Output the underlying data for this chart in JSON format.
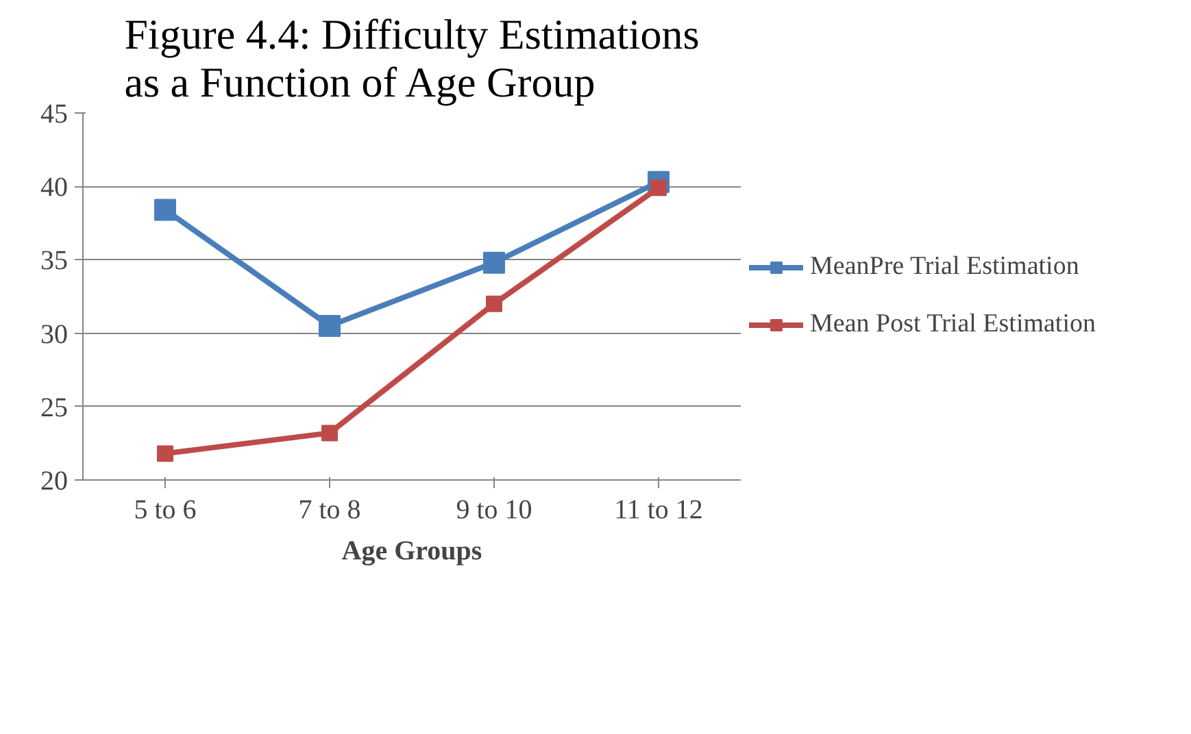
{
  "chart_data": {
    "type": "line",
    "title": "Figure 4.4: Difficulty Estimations as a Function of Age Group",
    "xlabel": "Age Groups",
    "categories": [
      "5 to 6",
      "7 to 8",
      "9 to 10",
      "11 to 12"
    ],
    "series": [
      {
        "name": "MeanPre Trial Estimation",
        "color": "#4a7ebb",
        "values": [
          38.4,
          30.5,
          34.8,
          40.3
        ]
      },
      {
        "name": "Mean Post Trial Estimation",
        "color": "#be4b48",
        "values": [
          21.8,
          23.2,
          32.0,
          39.9
        ]
      }
    ],
    "ylim": [
      20,
      45
    ],
    "yticks": [
      20,
      25,
      30,
      35,
      40,
      45
    ],
    "grid": "y",
    "legend": "right",
    "marker": "square",
    "line_style": "solid"
  }
}
